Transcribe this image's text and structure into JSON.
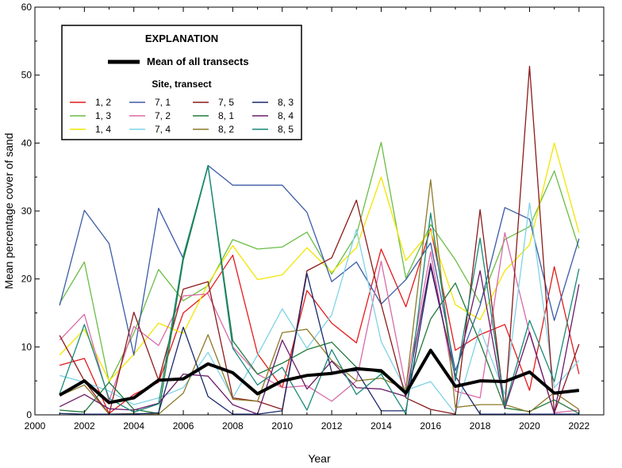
{
  "chart_data": {
    "type": "line",
    "title": "",
    "xlabel": "Year",
    "ylabel": "Mean percentage cover of sand",
    "xlim": [
      2000,
      2023
    ],
    "ylim": [
      0,
      60
    ],
    "x_ticks": [
      2000,
      2002,
      2004,
      2006,
      2008,
      2010,
      2012,
      2014,
      2016,
      2018,
      2020,
      2022
    ],
    "y_ticks": [
      0,
      10,
      20,
      30,
      40,
      50,
      60
    ],
    "grid": false,
    "legend": {
      "title": "EXPLANATION",
      "mean_label": "Mean of all transects",
      "subtitle": "Site, transect",
      "placement": "top-left"
    },
    "x": [
      2001,
      2002,
      2003,
      2004,
      2005,
      2006,
      2007,
      2008,
      2009,
      2010,
      2011,
      2012,
      2013,
      2014,
      2015,
      2016,
      2017,
      2018,
      2019,
      2020,
      2021,
      2022
    ],
    "mean": {
      "name": "Mean of all transects",
      "color": "#000000",
      "values": [
        2.9,
        5.0,
        1.8,
        2.5,
        5.1,
        5.3,
        7.5,
        6.2,
        3.1,
        5.0,
        5.8,
        6.1,
        6.8,
        6.5,
        3.2,
        9.5,
        4.2,
        5.0,
        4.9,
        6.3,
        3.2,
        3.6
      ]
    },
    "series": [
      {
        "name": "1, 2",
        "color": "#e41a1c",
        "values": [
          7.3,
          8.3,
          0.2,
          3.0,
          4.8,
          15.0,
          18.0,
          23.5,
          9.0,
          4.0,
          18.3,
          13.5,
          10.6,
          24.4,
          15.9,
          27.4,
          9.5,
          11.8,
          13.3,
          3.6,
          21.8,
          6.0
        ]
      },
      {
        "name": "1, 3",
        "color": "#6abd45",
        "values": [
          16.4,
          22.5,
          4.8,
          12.0,
          21.4,
          16.8,
          19.0,
          25.8,
          24.4,
          24.7,
          26.9,
          20.7,
          26.5,
          40.1,
          20.1,
          28.0,
          22.8,
          16.5,
          25.8,
          27.7,
          35.9,
          24.5
        ]
      },
      {
        "name": "1, 4",
        "color": "#f2e600",
        "values": [
          8.8,
          12.6,
          5.0,
          8.9,
          13.5,
          12.0,
          19.3,
          24.9,
          19.9,
          20.6,
          24.6,
          21.0,
          24.6,
          35.0,
          22.7,
          27.1,
          16.2,
          14.0,
          21.2,
          25.0,
          40.0,
          26.8
        ]
      },
      {
        "name": "7, 1",
        "color": "#3b5aa6",
        "values": [
          16.1,
          30.1,
          25.2,
          8.8,
          30.4,
          23.0,
          36.7,
          33.8,
          33.8,
          33.8,
          29.8,
          19.6,
          22.5,
          16.3,
          19.9,
          25.3,
          6.5,
          16.1,
          30.5,
          28.8,
          13.9,
          25.9
        ]
      },
      {
        "name": "7, 2",
        "color": "#d96aa7",
        "values": [
          11.0,
          14.8,
          2.0,
          13.0,
          10.2,
          17.5,
          17.8,
          10.0,
          6.0,
          4.0,
          4.3,
          2.0,
          5.0,
          22.6,
          4.0,
          24.0,
          3.5,
          2.5,
          26.8,
          12.0,
          0.3,
          0.7
        ]
      },
      {
        "name": "7, 4",
        "color": "#7fd3e6",
        "values": [
          5.8,
          4.8,
          3.5,
          1.5,
          2.5,
          4.0,
          9.2,
          2.5,
          8.8,
          15.6,
          9.8,
          14.7,
          27.3,
          10.8,
          3.6,
          4.9,
          0.2,
          12.7,
          3.0,
          31.2,
          4.0,
          8.0
        ]
      },
      {
        "name": "7, 5",
        "color": "#8b1a1a",
        "values": [
          11.7,
          5.0,
          0.1,
          15.1,
          5.1,
          18.5,
          19.6,
          2.5,
          2.0,
          0.8,
          21.2,
          23.1,
          31.6,
          16.3,
          2.5,
          0.8,
          0.1,
          30.2,
          0.9,
          51.3,
          0.3,
          10.4
        ]
      },
      {
        "name": "8, 1",
        "color": "#1f7a3a",
        "values": [
          0.7,
          0.4,
          4.8,
          0.8,
          0.2,
          22.8,
          36.6,
          10.9,
          6.0,
          7.6,
          9.6,
          10.7,
          7.0,
          6.2,
          3.5,
          14.1,
          19.4,
          10.6,
          1.0,
          0.5,
          2.2,
          0.2
        ]
      },
      {
        "name": "8, 2",
        "color": "#8c7a2a",
        "values": [
          2.8,
          4.4,
          0.1,
          0.2,
          0.1,
          3.2,
          11.8,
          2.3,
          2.0,
          12.1,
          12.6,
          8.0,
          5.0,
          5.4,
          3.8,
          34.6,
          1.1,
          1.5,
          1.5,
          0.4,
          3.3,
          0.8
        ]
      },
      {
        "name": "8, 3",
        "color": "#1a2a6c",
        "values": [
          0.2,
          0.1,
          0.1,
          0.1,
          0.3,
          12.9,
          2.7,
          0.1,
          0.1,
          0.6,
          20.8,
          6.3,
          6.5,
          0.6,
          0.6,
          21.8,
          5.7,
          0.1,
          0.1,
          0.1,
          0.1,
          0.1
        ]
      },
      {
        "name": "8, 4",
        "color": "#6a1b6a",
        "values": [
          1.2,
          3.0,
          0.9,
          0.7,
          1.7,
          6.0,
          5.7,
          1.5,
          0.1,
          11.0,
          3.8,
          7.9,
          4.0,
          3.8,
          2.7,
          22.3,
          5.5,
          21.2,
          1.0,
          12.2,
          0.2,
          19.2
        ]
      },
      {
        "name": "8, 5",
        "color": "#178a78",
        "values": [
          3.1,
          13.3,
          2.4,
          0.4,
          1.6,
          23.4,
          36.7,
          9.8,
          4.4,
          7.0,
          0.7,
          9.6,
          3.0,
          6.0,
          0.1,
          29.7,
          5.0,
          26.0,
          1.3,
          13.9,
          4.9,
          21.5
        ]
      }
    ]
  }
}
